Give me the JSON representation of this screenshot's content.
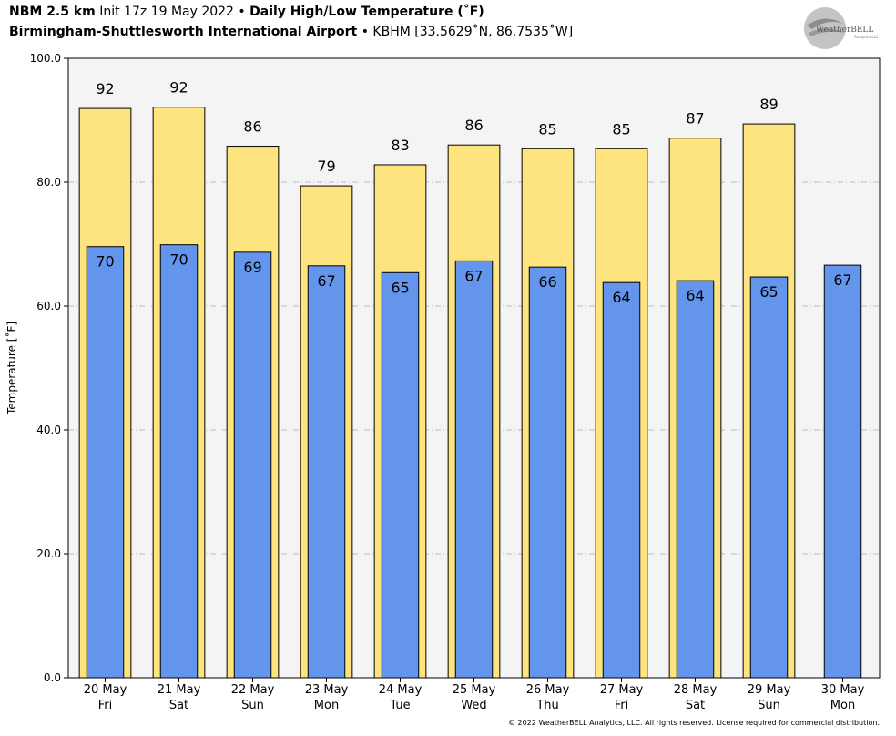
{
  "header": {
    "model": "NBM 2.5 km",
    "init": "Init 17z 19 May 2022",
    "bullet1": "•",
    "product": "Daily High/Low Temperature (˚F)",
    "location": "Birmingham-Shuttlesworth International Airport",
    "bullet2": "•",
    "station": "KBHM [33.5629˚N, 86.7535˚W]"
  },
  "logo": {
    "text": "WeatherBELL",
    "sub": "Analytics LLC"
  },
  "footer": "© 2022 WeatherBELL Analytics, LLC. All rights reserved. License required for commercial distribution.",
  "colors": {
    "high": "#fde47f",
    "low": "#6495ed",
    "plot_bg": "#f4f4f4",
    "grid": "#aaaaaa"
  },
  "chart_data": {
    "type": "bar",
    "ylabel": "Temperature [˚F]",
    "ylim": [
      0,
      100
    ],
    "yticks": [
      "0.0",
      "20.0",
      "40.0",
      "60.0",
      "80.0",
      "100.0"
    ],
    "grid": true,
    "categories": [
      [
        "20 May",
        "Fri"
      ],
      [
        "21 May",
        "Sat"
      ],
      [
        "22 May",
        "Sun"
      ],
      [
        "23 May",
        "Mon"
      ],
      [
        "24 May",
        "Tue"
      ],
      [
        "25 May",
        "Wed"
      ],
      [
        "26 May",
        "Thu"
      ],
      [
        "27 May",
        "Fri"
      ],
      [
        "28 May",
        "Sat"
      ],
      [
        "29 May",
        "Sun"
      ],
      [
        "30 May",
        "Mon"
      ]
    ],
    "series": [
      {
        "values": [
          92,
          92,
          86,
          79,
          83,
          86,
          85,
          85,
          87,
          89,
          null
        ]
      },
      {
        "values": [
          70,
          70,
          69,
          67,
          65,
          67,
          66,
          64,
          64,
          65,
          67
        ]
      }
    ],
    "high_precise": [
      91.9,
      92.1,
      85.8,
      79.4,
      82.8,
      86.0,
      85.4,
      85.4,
      87.1,
      89.4,
      null
    ],
    "low_precise": [
      69.6,
      69.9,
      68.7,
      66.5,
      65.4,
      67.3,
      66.3,
      63.8,
      64.1,
      64.7,
      66.6
    ]
  }
}
